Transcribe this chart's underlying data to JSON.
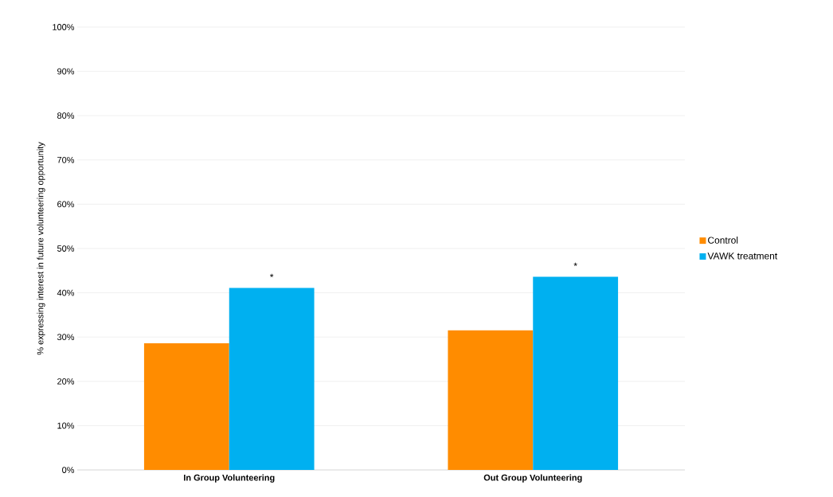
{
  "chart_data": {
    "type": "bar",
    "ylabel": "% expressing interest in future volunteering opportunity",
    "categories": [
      "In Group Volunteering",
      "Out Group Volunteering"
    ],
    "series": [
      {
        "name": "Control",
        "color": "#ff8c00",
        "values": [
          28.6,
          31.5
        ]
      },
      {
        "name": "VAWK treatment",
        "color": "#00b0f0",
        "values": [
          41.1,
          43.6
        ]
      }
    ],
    "ylim": [
      0,
      100
    ],
    "yticks": [
      {
        "value": 0,
        "label": "0%"
      },
      {
        "value": 10,
        "label": "10%"
      },
      {
        "value": 20,
        "label": "20%"
      },
      {
        "value": 30,
        "label": "30%"
      },
      {
        "value": 40,
        "label": "40%"
      },
      {
        "value": 50,
        "label": "50%"
      },
      {
        "value": 60,
        "label": "60%"
      },
      {
        "value": 70,
        "label": "70%"
      },
      {
        "value": 80,
        "label": "80%"
      },
      {
        "value": 90,
        "label": "90%"
      },
      {
        "value": 100,
        "label": "100%"
      }
    ],
    "grid": "y",
    "legend": "right",
    "annotations": [
      "*",
      "*"
    ]
  }
}
